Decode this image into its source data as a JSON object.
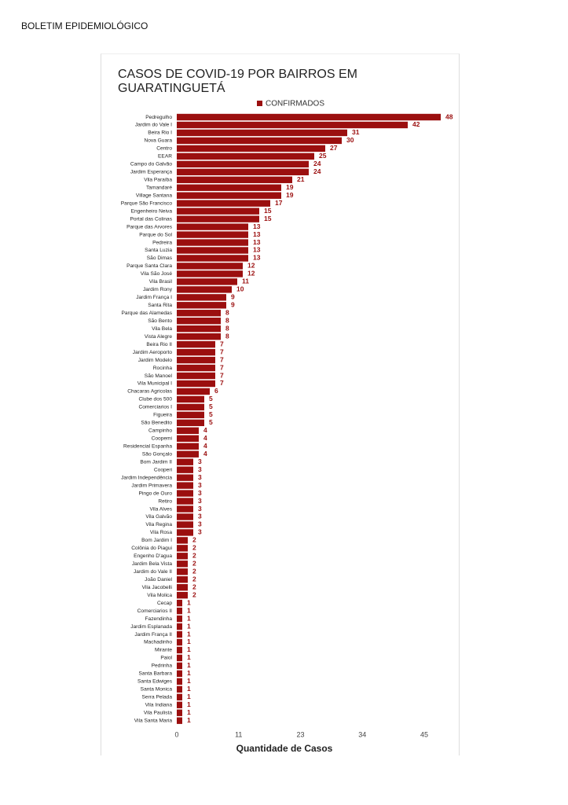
{
  "header": "BOLETIM EPIDEMIOLÓGICO",
  "chart_data": {
    "type": "bar",
    "orientation": "horizontal",
    "title": "CASOS DE COVID-19 POR BAIRROS EM GUARATINGUETÁ",
    "x_label": "Quantidade de Casos",
    "legend": "top",
    "categories": [
      "Pedregulho",
      "Jardim do Vale I",
      "Beira Rio I",
      "Nova Guara",
      "Centro",
      "EEAR",
      "Campo do Galvão",
      "Jardim Esperança",
      "Vila Paraíba",
      "Tamandaré",
      "Village Santana",
      "Parque São Francisco",
      "Engenheiro Neiva",
      "Portal das Colinas",
      "Parque das Arvores",
      "Parque do Sol",
      "Pedreira",
      "Santa Luzia",
      "São Dimas",
      "Parque Santa Clara",
      "Vila São José",
      "Vila Brasil",
      "Jardim Rony",
      "Jardim França I",
      "Santa Rita",
      "Parque das Alamedas",
      "São Bento",
      "Vila Bela",
      "Vista Alegre",
      "Beira Rio II",
      "Jardim Aeroporto",
      "Jardim Modelo",
      "Rocinha",
      "São Manoel",
      "Vila Municipal I",
      "Chacaras Agricolas",
      "Clube dos 500",
      "Comerciarios I",
      "Figueira",
      "São Benedito",
      "Campinho",
      "Coopemi",
      "Residencial Espanha",
      "São Gonçalo",
      "Bom Jardim II",
      "Cooperi",
      "Jardim Independência",
      "Jardim Primavera",
      "Pingo de Ouro",
      "Retiro",
      "Vila Alves",
      "Vila Galvão",
      "Vila Regina",
      "Vila Rosa",
      "Bom Jardim I",
      "Colônia do Piagui",
      "Engenho D'agua",
      "Jardim Bela Vista",
      "Jardim do Vale II",
      "João Daniel",
      "Vila Jacobelli",
      "Vila Molica",
      "Cecap",
      "Comerciarios II",
      "Fazendinha",
      "Jardim Esplanada",
      "Jardim França II",
      "Machadinho",
      "Mirante",
      "Paiol",
      "Pedrinha",
      "Santa Barbara",
      "Santa Edwiges",
      "Santa Monica",
      "Serra Pelada",
      "Vila Indiana",
      "Vila Paulista",
      "Vila Santa Maria"
    ],
    "series": [
      {
        "name": "CONFIRMADOS",
        "color": "#9b0f0f",
        "values": [
          48,
          42,
          31,
          30,
          27,
          25,
          24,
          24,
          21,
          19,
          19,
          17,
          15,
          15,
          13,
          13,
          13,
          13,
          13,
          12,
          12,
          11,
          10,
          9,
          9,
          8,
          8,
          8,
          8,
          7,
          7,
          7,
          7,
          7,
          7,
          6,
          5,
          5,
          5,
          5,
          4,
          4,
          4,
          4,
          3,
          3,
          3,
          3,
          3,
          3,
          3,
          3,
          3,
          3,
          2,
          2,
          2,
          2,
          2,
          2,
          2,
          2,
          1,
          1,
          1,
          1,
          1,
          1,
          1,
          1,
          1,
          1,
          1,
          1,
          1,
          1,
          1,
          1
        ]
      }
    ],
    "xlim": [
      0,
      48
    ],
    "xticks": [
      0,
      {
        "value": 11.25,
        "label": "11"
      },
      {
        "value": 22.5,
        "label": "23"
      },
      {
        "value": 33.75,
        "label": "34"
      },
      45
    ]
  }
}
